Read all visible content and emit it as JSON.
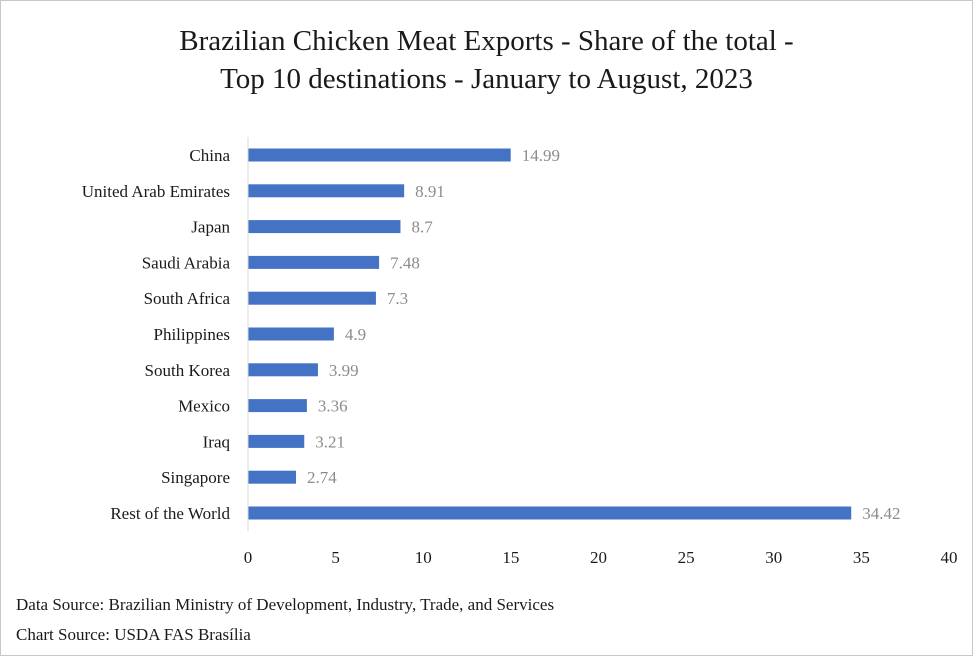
{
  "chart_data": {
    "type": "bar",
    "orientation": "horizontal",
    "title": "Brazilian Chicken Meat Exports - Share of the total -",
    "subtitle": "Top 10 destinations - January to August, 2023",
    "categories": [
      "China",
      "United Arab Emirates",
      "Japan",
      "Saudi Arabia",
      "South Africa",
      "Philippines",
      "South Korea",
      "Mexico",
      "Iraq",
      "Singapore",
      "Rest of the World"
    ],
    "values": [
      14.99,
      8.91,
      8.7,
      7.48,
      7.3,
      4.9,
      3.99,
      3.36,
      3.21,
      2.74,
      34.42
    ],
    "value_labels": [
      "14.99",
      "8.91",
      "8.7",
      "7.48",
      "7.3",
      "4.9",
      "3.99",
      "3.36",
      "3.21",
      "2.74",
      "34.42"
    ],
    "xlim": [
      0,
      40
    ],
    "xticks": [
      "0",
      "5",
      "10",
      "15",
      "20",
      "25",
      "30",
      "35",
      "40"
    ],
    "grid": false,
    "bar_color": "#4472c4",
    "value_label_color": "#8c8c8c"
  },
  "footer": {
    "data_source": "Data Source: Brazilian Ministry of Development, Industry, Trade, and Services",
    "chart_source": "Chart Source: USDA FAS Brasília"
  }
}
